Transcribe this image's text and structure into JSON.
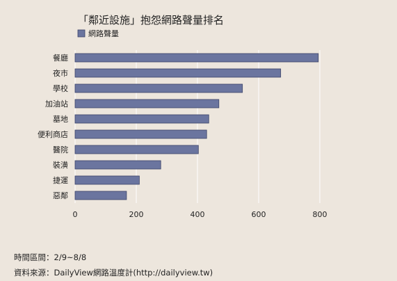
{
  "chart_data": {
    "type": "bar",
    "orientation": "horizontal",
    "title": "「鄰近設施」抱怨網路聲量排名",
    "legend": {
      "position": "top-left",
      "entries": [
        "網路聲量"
      ]
    },
    "categories": [
      "餐廳",
      "夜市",
      "學校",
      "加油站",
      "墓地",
      "便利商店",
      "醫院",
      "裝潢",
      "捷運",
      "惡鄰"
    ],
    "series": [
      {
        "name": "網路聲量",
        "color": "#6b759f",
        "values": [
          795,
          672,
          547,
          470,
          437,
          430,
          403,
          280,
          210,
          168
        ]
      }
    ],
    "xlim": [
      0,
      800
    ],
    "xticks": [
      0,
      200,
      400,
      600,
      800
    ],
    "grid": true
  },
  "footer": {
    "period": "時間區間：2/9~8/8",
    "source": "資料來源：DailyView網路溫度計(http://dailyview.tw)"
  }
}
